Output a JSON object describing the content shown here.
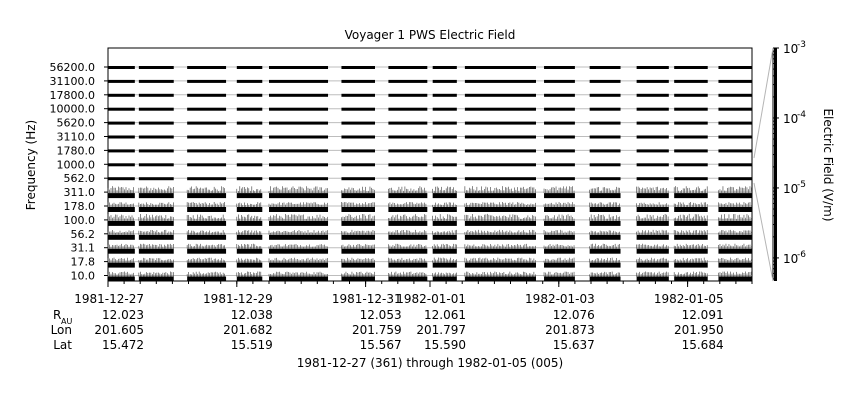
{
  "chart_data": {
    "type": "heatmap",
    "title": "Voyager 1 PWS Electric Field",
    "ylabel": "Frequency (Hz)",
    "colorbar_label": "Electric Field (V/m)",
    "colorbar_ticks": [
      "-3",
      "-4",
      "-5",
      "-6"
    ],
    "colorbar_base": "10",
    "channels": [
      "56200.0",
      "31100.0",
      "17800.0",
      "10000.0",
      "5620.0",
      "3110.0",
      "1780.0",
      "1000.0",
      "562.0",
      "311.0",
      "178.0",
      "100.0",
      "56.2",
      "31.1",
      "17.8",
      "10.0"
    ],
    "x_ticks": [
      {
        "date": "1981-12-27",
        "r": "12.023",
        "lon": "201.605",
        "lat": "15.472"
      },
      {
        "date": "1981-12-29",
        "r": "12.038",
        "lon": "201.682",
        "lat": "15.519"
      },
      {
        "date": "1981-12-31",
        "r": "12.053",
        "lon": "201.759",
        "lat": "15.567"
      },
      {
        "date": "1982-01-01",
        "r": "12.061",
        "lon": "201.797",
        "lat": "15.590"
      },
      {
        "date": "1982-01-03",
        "r": "12.076",
        "lon": "201.873",
        "lat": "15.637"
      },
      {
        "date": "1982-01-05",
        "r": "12.091",
        "lon": "201.950",
        "lat": "15.684"
      }
    ],
    "row_labels": {
      "r": "R",
      "r_sub": "AU",
      "lon": "Lon",
      "lat": "Lat"
    },
    "xlabel": "1981-12-27 (361) through 1982-01-05 (005)",
    "x_range": [
      "1981-12-27",
      "1982-01-05"
    ],
    "data_segments": [
      [
        "1981-12-27 00:00",
        "1981-12-27 10:00"
      ],
      [
        "1981-12-27 11:30",
        "1981-12-28 00:30"
      ],
      [
        "1981-12-28 05:30",
        "1981-12-28 20:00"
      ],
      [
        "1981-12-29 00:00",
        "1981-12-29 09:30"
      ],
      [
        "1981-12-29 12:00",
        "1981-12-30 10:00"
      ],
      [
        "1981-12-30 15:00",
        "1981-12-31 03:30"
      ],
      [
        "1981-12-31 08:30",
        "1981-12-31 23:00"
      ],
      [
        "1982-01-01 01:00",
        "1982-01-01 10:00"
      ],
      [
        "1982-01-01 13:00",
        "1982-01-02 15:30"
      ],
      [
        "1982-01-02 18:30",
        "1982-01-03 06:00"
      ],
      [
        "1982-01-03 11:30",
        "1982-01-03 23:00"
      ],
      [
        "1982-01-04 05:00",
        "1982-01-04 17:00"
      ],
      [
        "1982-01-04 19:00",
        "1982-01-05 07:30"
      ],
      [
        "1982-01-05 11:30",
        "1982-01-05 23:59"
      ]
    ],
    "active_channels": [
      "311.0",
      "178.0",
      "100.0",
      "56.2",
      "31.1",
      "17.8",
      "10.0"
    ]
  }
}
